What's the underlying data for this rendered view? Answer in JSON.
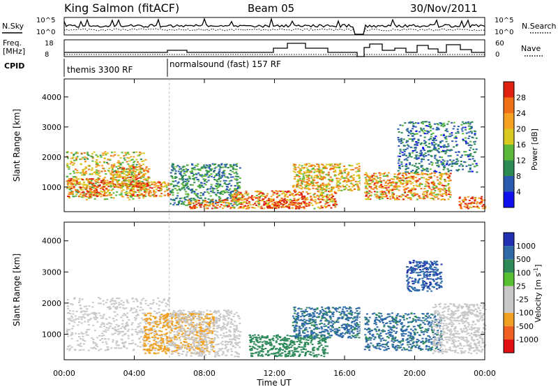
{
  "header": {
    "station": "King Salmon (fitACF)",
    "beam": "Beam 05",
    "date": "30/Nov/2011"
  },
  "top_panels": {
    "nsky_label": "N.Sky",
    "nsky_ticks": [
      "10^5",
      "10^0"
    ],
    "nsearch_label": "N.Search",
    "freq_label_1": "Freq.",
    "freq_label_2": "[MHz]",
    "freq_ticks": [
      "18",
      "8"
    ],
    "nave_label": "Nave",
    "nave_ticks": [
      "60",
      "0"
    ],
    "cpid_label": "CPID",
    "cpid_modes": [
      {
        "label": "themis 3300 RF",
        "start_hour": 0
      },
      {
        "label": "normalsound (fast) 157 RF",
        "start_hour": 6
      }
    ]
  },
  "colors": {
    "power_scale": [
      "#1010ee",
      "#2b5bb0",
      "#2e8a55",
      "#5cb83a",
      "#d8c820",
      "#f5a020",
      "#f07018",
      "#e02010"
    ],
    "velocity_scale": [
      "#2030b0",
      "#2f6aa8",
      "#2f8a5a",
      "#58c030",
      "#c8c8c8",
      "#c8c8c8",
      "#f0a020",
      "#f06020",
      "#e01010"
    ]
  },
  "chart_data": [
    {
      "type": "heatmap",
      "title": "Power",
      "xlabel": "Time UT",
      "ylabel": "Slant Range [km]",
      "x_tick_labels": [
        "00:00",
        "04:00",
        "08:00",
        "12:00",
        "16:00",
        "20:00",
        "00:00"
      ],
      "x_range_hours": [
        0,
        24
      ],
      "y_ticks": [
        "1000",
        "2000",
        "3000",
        "4000"
      ],
      "ylim": [
        180,
        4600
      ],
      "colorbar": {
        "label": "Power [dB]",
        "ticks": [
          "4",
          "8",
          "12",
          "16",
          "20",
          "24",
          "28"
        ],
        "range": [
          0,
          32
        ]
      },
      "data_gaps_hours": [
        [
          16.9,
          17.05
        ]
      ],
      "regions": [
        {
          "t": [
            0.1,
            4.6
          ],
          "r": [
            600,
            2200
          ],
          "value": 18
        },
        {
          "t": [
            0.1,
            2.5
          ],
          "r": [
            700,
            1300
          ],
          "value": 26
        },
        {
          "t": [
            2.5,
            4.8
          ],
          "r": [
            1000,
            1700
          ],
          "value": 22
        },
        {
          "t": [
            3.5,
            6.0
          ],
          "r": [
            700,
            1200
          ],
          "value": 24
        },
        {
          "t": [
            6.0,
            10.0
          ],
          "r": [
            400,
            1800
          ],
          "value": 10
        },
        {
          "t": [
            7.0,
            9.5
          ],
          "r": [
            300,
            600
          ],
          "value": 24
        },
        {
          "t": [
            9.5,
            15.5
          ],
          "r": [
            300,
            900
          ],
          "value": 24
        },
        {
          "t": [
            11.5,
            13.5
          ],
          "r": [
            300,
            600
          ],
          "value": 28
        },
        {
          "t": [
            13.0,
            16.9
          ],
          "r": [
            900,
            1800
          ],
          "value": 20
        },
        {
          "t": [
            17.1,
            22.0
          ],
          "r": [
            600,
            1500
          ],
          "value": 22
        },
        {
          "t": [
            19.0,
            23.5
          ],
          "r": [
            1500,
            3200
          ],
          "value": 8
        },
        {
          "t": [
            22.5,
            24.0
          ],
          "r": [
            300,
            700
          ],
          "value": 26
        }
      ]
    },
    {
      "type": "heatmap",
      "title": "Velocity",
      "xlabel": "Time UT",
      "ylabel": "Slant Range [km]",
      "x_tick_labels": [
        "00:00",
        "04:00",
        "08:00",
        "12:00",
        "16:00",
        "20:00",
        "00:00"
      ],
      "x_range_hours": [
        0,
        24
      ],
      "y_ticks": [
        "1000",
        "2000",
        "3000",
        "4000"
      ],
      "ylim": [
        180,
        4600
      ],
      "colorbar": {
        "label": "Velocity [m s^-1]",
        "ticks": [
          "1000",
          "500",
          "100",
          "25",
          "-25",
          "-100",
          "-500",
          "-1000"
        ],
        "range": [
          -1000,
          1000
        ]
      },
      "data_gaps_hours": [
        [
          16.9,
          17.05
        ]
      ],
      "regions": [
        {
          "t": [
            0.1,
            6.0
          ],
          "r": [
            500,
            2200
          ],
          "value": 0
        },
        {
          "t": [
            4.5,
            8.5
          ],
          "r": [
            400,
            1700
          ],
          "value": -150
        },
        {
          "t": [
            6.0,
            10.0
          ],
          "r": [
            300,
            1800
          ],
          "value": 0
        },
        {
          "t": [
            10.5,
            15.0
          ],
          "r": [
            300,
            1000
          ],
          "value": 150
        },
        {
          "t": [
            13.0,
            16.9
          ],
          "r": [
            900,
            1900
          ],
          "value": 350
        },
        {
          "t": [
            17.1,
            21.5
          ],
          "r": [
            500,
            1700
          ],
          "value": 350
        },
        {
          "t": [
            19.5,
            21.5
          ],
          "r": [
            2400,
            3400
          ],
          "value": 700
        },
        {
          "t": [
            21.0,
            24.0
          ],
          "r": [
            400,
            2000
          ],
          "value": 0
        }
      ]
    }
  ]
}
